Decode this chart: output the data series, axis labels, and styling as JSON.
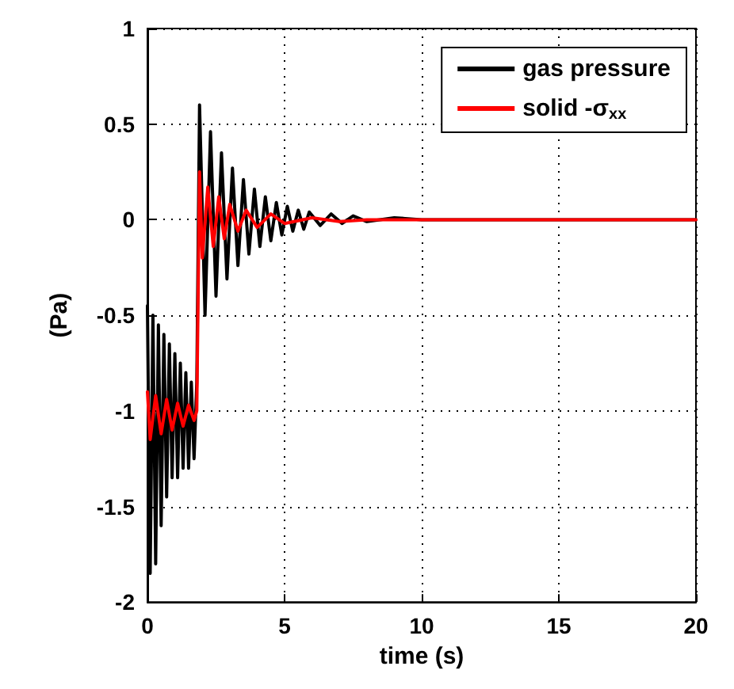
{
  "chart_data": {
    "type": "line",
    "xlabel": "time (s)",
    "ylabel": "(Pa)",
    "xlim": [
      0,
      20
    ],
    "xticks": [
      0,
      5,
      10,
      15,
      20
    ],
    "ylim": [
      -2,
      1
    ],
    "yticks": [
      -2,
      -1.5,
      -1,
      -0.5,
      0,
      0.5,
      1
    ],
    "grid": true,
    "legend": "top right",
    "marker": "none",
    "line_style": "solid",
    "series": [
      {
        "name": "gas pressure",
        "color": "#000000",
        "x": [
          0,
          0.1,
          0.2,
          0.3,
          0.4,
          0.5,
          0.6,
          0.7,
          0.8,
          0.9,
          1.0,
          1.1,
          1.2,
          1.3,
          1.4,
          1.5,
          1.6,
          1.7,
          1.8,
          1.9,
          2.1,
          2.3,
          2.5,
          2.7,
          2.9,
          3.1,
          3.3,
          3.5,
          3.7,
          3.9,
          4.1,
          4.3,
          4.5,
          4.7,
          4.9,
          5.1,
          5.3,
          5.5,
          5.7,
          5.9,
          6.3,
          6.7,
          7.1,
          7.5,
          8,
          9,
          10,
          20
        ],
        "values": [
          -0.45,
          -1.85,
          -0.5,
          -1.8,
          -0.55,
          -1.6,
          -0.6,
          -1.45,
          -0.65,
          -1.35,
          -0.7,
          -1.35,
          -0.75,
          -1.3,
          -0.8,
          -1.3,
          -0.85,
          -1.25,
          -0.85,
          0.6,
          -0.5,
          0.46,
          -0.4,
          0.35,
          -0.31,
          0.27,
          -0.24,
          0.21,
          -0.18,
          0.16,
          -0.14,
          0.12,
          -0.11,
          0.09,
          -0.08,
          0.07,
          -0.06,
          0.05,
          -0.05,
          0.04,
          -0.03,
          0.03,
          -0.02,
          0.02,
          -0.01,
          0.01,
          0,
          0
        ]
      },
      {
        "name": "solid -σ$_{xx}$",
        "color": "#ff0000",
        "x": [
          0,
          0.1,
          0.3,
          0.5,
          0.7,
          0.9,
          1.1,
          1.3,
          1.5,
          1.7,
          1.8,
          1.9,
          2.0,
          2.2,
          2.4,
          2.6,
          2.8,
          3.0,
          3.3,
          3.6,
          4,
          4.5,
          5,
          6,
          7,
          8,
          20
        ],
        "values": [
          -0.9,
          -1.15,
          -0.92,
          -1.12,
          -0.94,
          -1.1,
          -0.96,
          -1.08,
          -0.97,
          -1.05,
          -1.0,
          0.25,
          -0.2,
          0.17,
          -0.14,
          0.12,
          -0.1,
          0.08,
          -0.06,
          0.05,
          -0.04,
          0.03,
          -0.02,
          0.01,
          -0.01,
          0,
          0
        ]
      }
    ]
  }
}
